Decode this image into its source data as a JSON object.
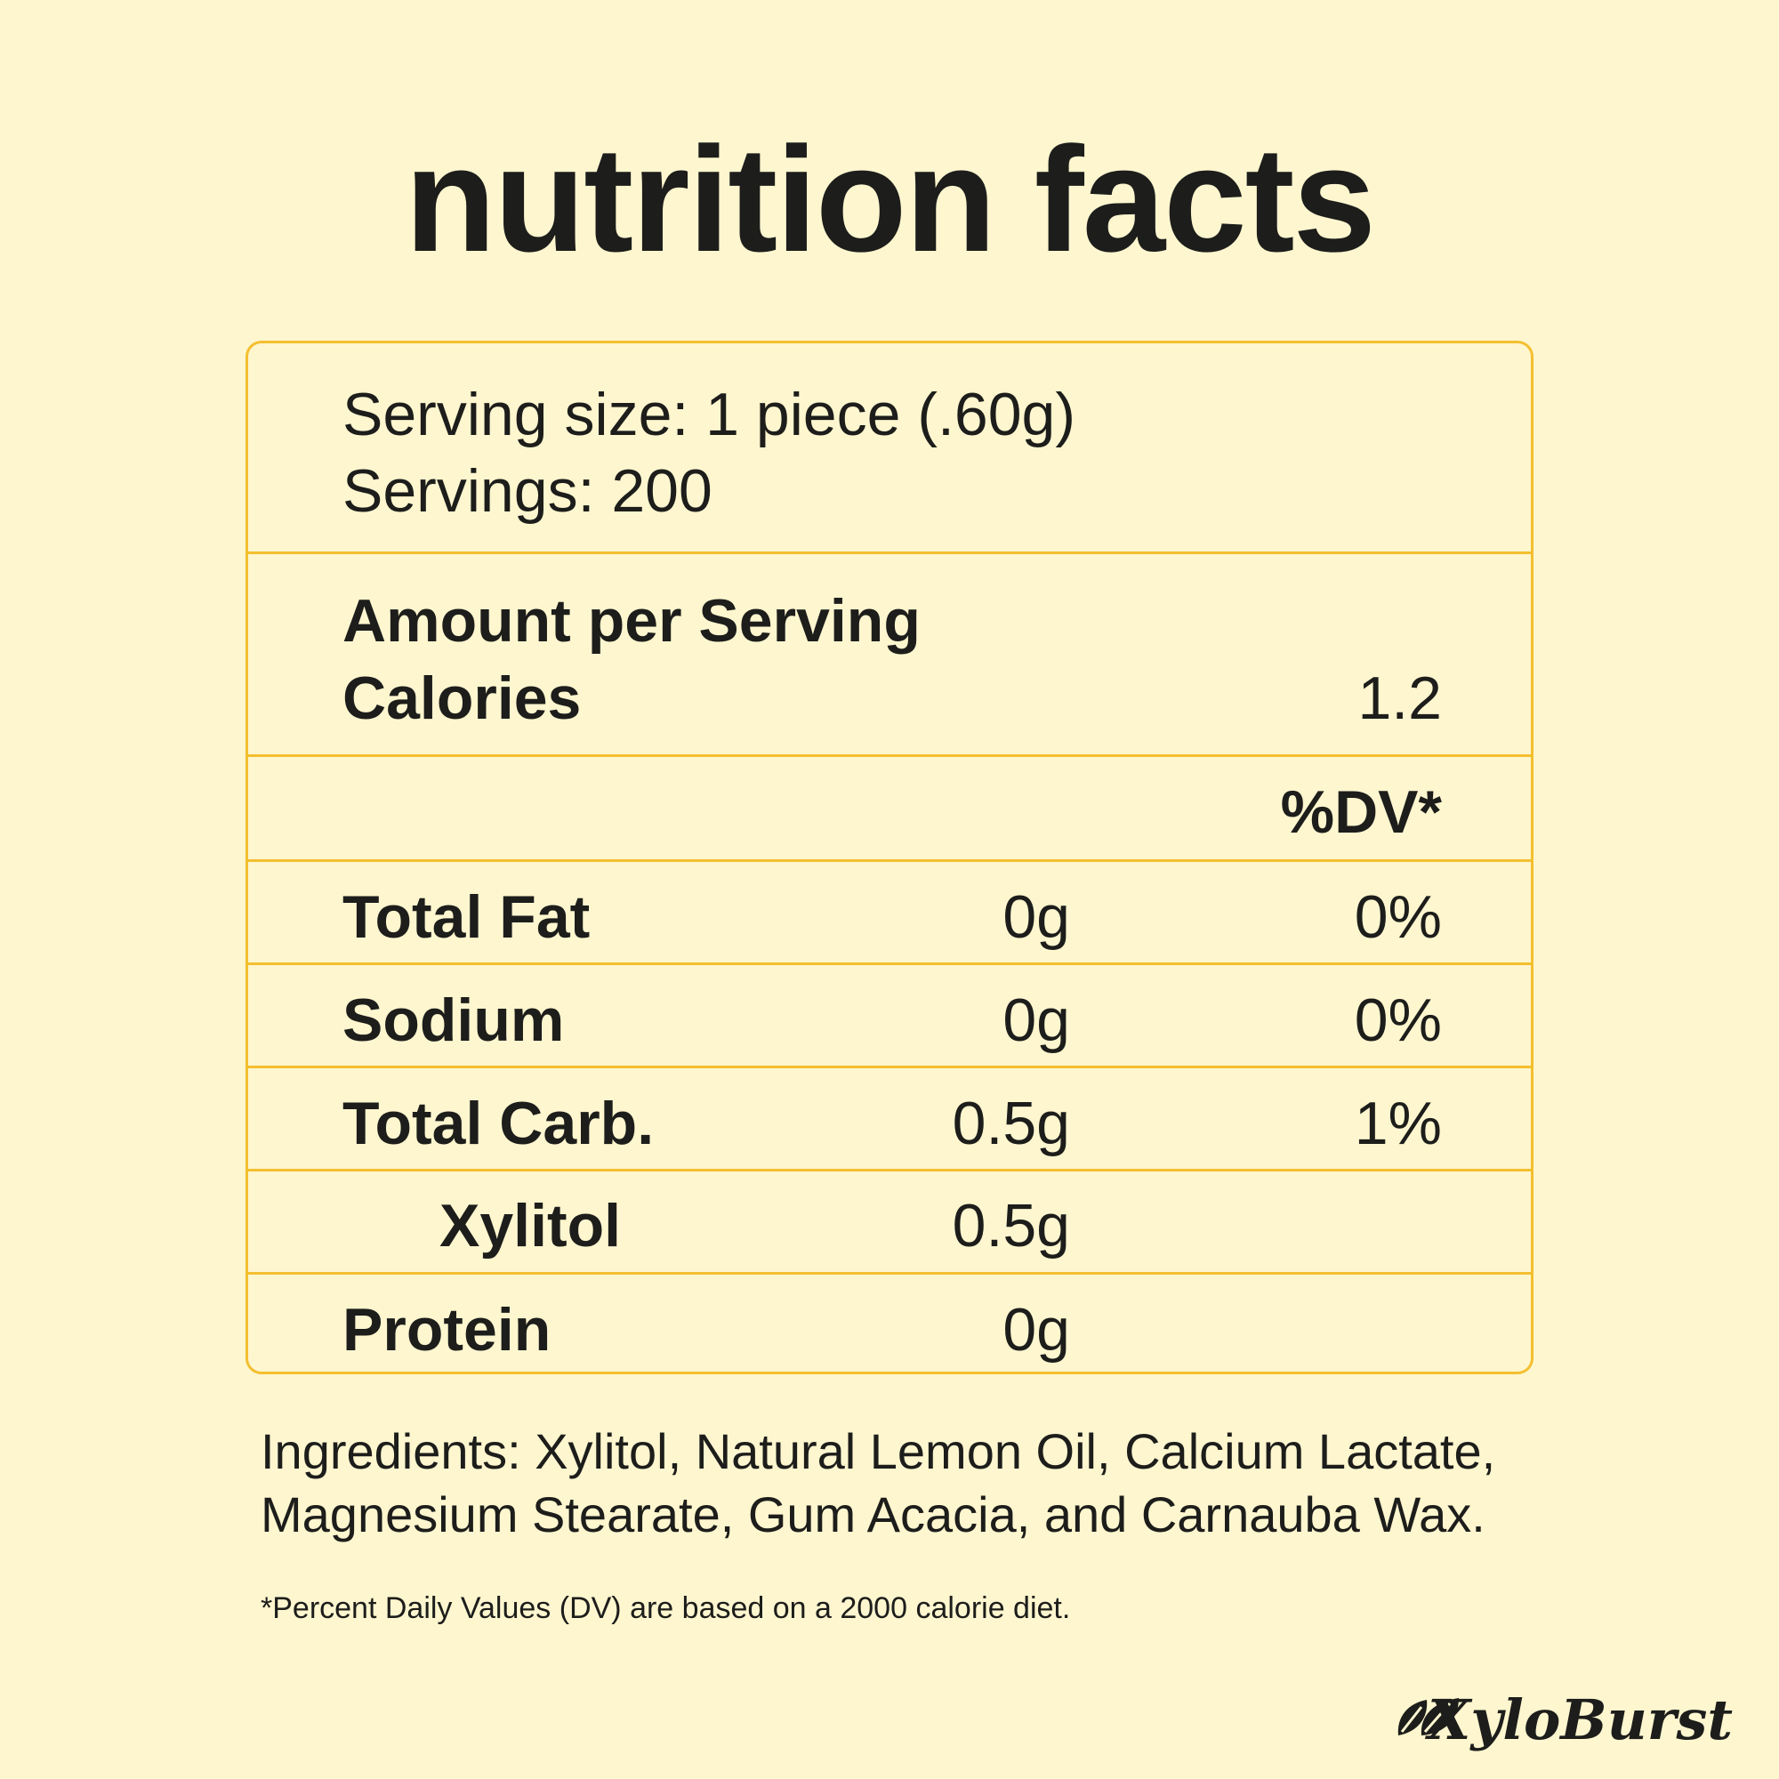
{
  "title": "nutrition facts",
  "serving": {
    "size": "Serving size: 1 piece (.60g)",
    "servings": "Servings: 200"
  },
  "amount_heading": "Amount per Serving",
  "calories": {
    "label": "Calories",
    "value": "1.2"
  },
  "dv_header": "%DV*",
  "rows": [
    [
      "Total Fat",
      "0g",
      "0%"
    ],
    [
      "Sodium",
      "0g",
      "0%"
    ],
    [
      "Total Carb.",
      "0.5g",
      "1%"
    ],
    [
      "Xylitol",
      "0.5g"
    ],
    [
      "Protein",
      "0g"
    ]
  ],
  "ingredients": [
    "Ingredients: Xylitol, Natural Lemon Oil, Calcium Lactate,",
    "Magnesium Stearate, Gum Acacia, and Carnauba Wax."
  ],
  "footnote": "*Percent Daily Values (DV) are based on a 2000 calorie diet.",
  "brand": "XyloBurst"
}
